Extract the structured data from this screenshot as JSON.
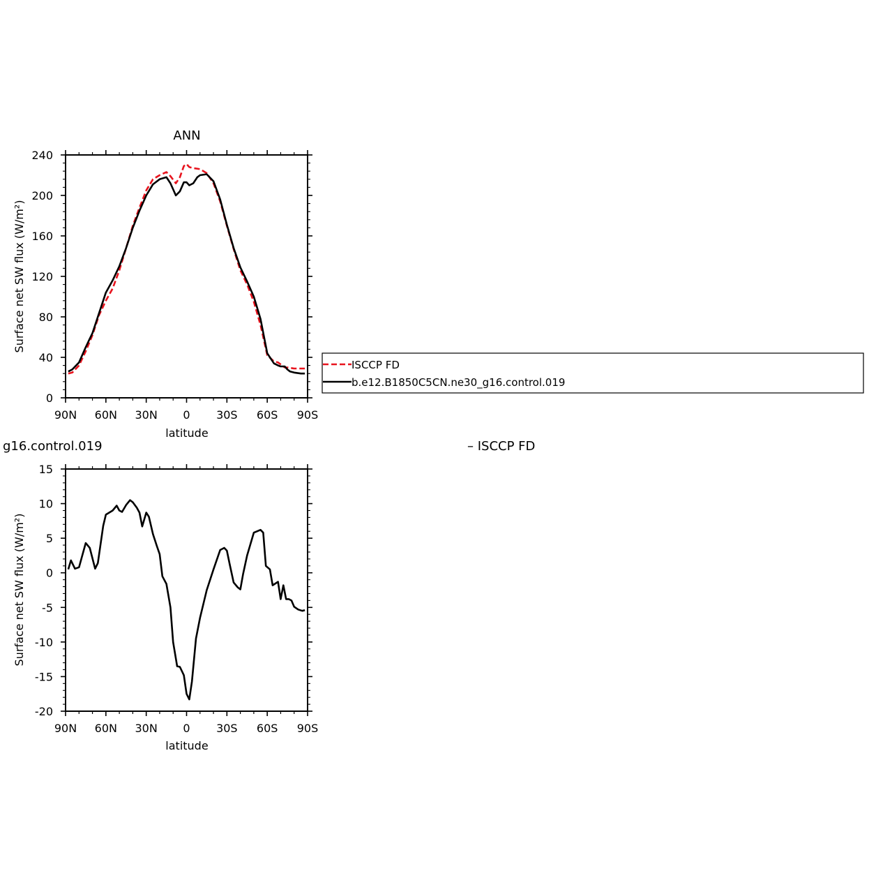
{
  "figure": {
    "top_panel_title": "ANN",
    "bottom_panel_title": "g16.control.019",
    "bottom_panel_right_title": "– ISCCP FD"
  },
  "legend": {
    "entries": [
      {
        "label": "ISCCP FD",
        "color": "#e8141e",
        "style": "dashed"
      },
      {
        "label": "b.e12.B1850C5CN.ne30_g16.control.019",
        "color": "#000000",
        "style": "solid"
      }
    ]
  },
  "chart_data": [
    {
      "type": "line",
      "title": "ANN",
      "xlabel": "latitude",
      "ylabel": "Surface net SW flux (W/m²)",
      "x_note": "latitude in degrees; positive = N, negative = S",
      "xlim": [
        90,
        -90
      ],
      "ylim": [
        0,
        240
      ],
      "x_ticks": [
        90,
        60,
        30,
        0,
        -30,
        -60,
        -90
      ],
      "x_tick_labels": [
        "90N",
        "60N",
        "30N",
        "0",
        "30S",
        "60S",
        "90S"
      ],
      "y_ticks": [
        0,
        40,
        80,
        120,
        160,
        200,
        240
      ],
      "y_tick_labels": [
        "0",
        "40",
        "80",
        "120",
        "160",
        "200",
        "240"
      ],
      "series": [
        {
          "name": "ISCCP FD",
          "color": "#e8141e",
          "style": "dashed",
          "x": [
            88,
            85,
            80,
            75,
            70,
            65,
            60,
            55,
            50,
            45,
            40,
            35,
            30,
            25,
            20,
            15,
            12,
            8,
            5,
            2,
            0,
            -2,
            -5,
            -10,
            -15,
            -20,
            -25,
            -30,
            -35,
            -40,
            -45,
            -50,
            -55,
            -60,
            -65,
            -68,
            -70,
            -73,
            -75,
            -80,
            -85,
            -88
          ],
          "y": [
            24,
            25,
            32,
            46,
            62,
            82,
            96,
            108,
            126,
            148,
            170,
            188,
            205,
            216,
            220,
            223,
            219,
            212,
            218,
            229,
            231,
            228,
            227,
            226,
            222,
            212,
            194,
            170,
            147,
            126,
            112,
            95,
            72,
            42,
            36,
            35,
            33,
            30,
            30,
            29,
            29,
            29
          ]
        },
        {
          "name": "b.e12.B1850C5CN.ne30_g16.control.019",
          "color": "#000000",
          "style": "solid",
          "x": [
            88,
            85,
            80,
            75,
            70,
            65,
            60,
            55,
            50,
            45,
            40,
            35,
            30,
            25,
            20,
            15,
            12,
            8,
            5,
            2,
            0,
            -2,
            -5,
            -8,
            -10,
            -15,
            -20,
            -25,
            -30,
            -35,
            -40,
            -45,
            -50,
            -55,
            -60,
            -65,
            -68,
            -70,
            -73,
            -75,
            -77,
            -80,
            -85,
            -88
          ],
          "y": [
            26,
            28,
            35,
            50,
            64,
            84,
            104,
            116,
            130,
            148,
            168,
            185,
            200,
            211,
            216,
            218,
            212,
            200,
            204,
            213,
            213,
            210,
            212,
            218,
            220,
            221,
            214,
            196,
            171,
            148,
            129,
            115,
            100,
            78,
            44,
            34,
            32,
            31,
            31,
            28,
            26,
            25,
            24,
            24
          ]
        }
      ]
    },
    {
      "type": "line",
      "title": "g16.control.019",
      "xlabel": "latitude",
      "ylabel": "Surface net SW flux (W/m²)",
      "x_note": "latitude in degrees; positive = N, negative = S",
      "xlim": [
        90,
        -90
      ],
      "ylim": [
        -20,
        15
      ],
      "x_ticks": [
        90,
        60,
        30,
        0,
        -30,
        -60,
        -90
      ],
      "x_tick_labels": [
        "90N",
        "60N",
        "30N",
        "0",
        "30S",
        "60S",
        "90S"
      ],
      "y_ticks": [
        -20,
        -15,
        -10,
        -5,
        0,
        5,
        10,
        15
      ],
      "y_tick_labels": [
        "-20",
        "-15",
        "-10",
        "-5",
        "0",
        "5",
        "10",
        "15"
      ],
      "series": [
        {
          "color": "#000000",
          "style": "solid",
          "x": [
            88,
            86,
            83,
            80,
            75,
            72,
            68,
            66,
            62,
            60,
            55,
            52,
            50,
            48,
            45,
            42,
            40,
            37,
            35,
            33,
            30,
            28,
            25,
            22,
            20,
            18,
            15,
            12,
            10,
            7,
            5,
            2,
            0,
            -2,
            -4,
            -7,
            -10,
            -15,
            -20,
            -25,
            -28,
            -30,
            -32,
            -35,
            -38,
            -40,
            -42,
            -45,
            -50,
            -55,
            -57,
            -59,
            -62,
            -64,
            -68,
            -70,
            -72,
            -74,
            -76,
            -78,
            -80,
            -83,
            -86,
            -88
          ],
          "y": [
            0.5,
            1.8,
            0.6,
            0.8,
            4.3,
            3.6,
            0.6,
            1.4,
            6.8,
            8.4,
            9.0,
            9.7,
            9.0,
            8.8,
            9.8,
            10.5,
            10.2,
            9.4,
            8.7,
            6.7,
            8.7,
            8.1,
            5.6,
            3.8,
            2.7,
            -0.5,
            -1.6,
            -5.0,
            -10.0,
            -13.5,
            -13.6,
            -14.8,
            -17.5,
            -18.3,
            -15.7,
            -9.5,
            -6.5,
            -2.5,
            0.5,
            3.3,
            3.6,
            3.2,
            1.3,
            -1.4,
            -2.1,
            -2.4,
            -0.2,
            2.5,
            5.8,
            6.2,
            5.8,
            1.0,
            0.5,
            -1.8,
            -1.3,
            -3.8,
            -1.8,
            -3.8,
            -3.8,
            -4.0,
            -4.9,
            -5.3,
            -5.5,
            -5.4
          ]
        }
      ]
    }
  ]
}
